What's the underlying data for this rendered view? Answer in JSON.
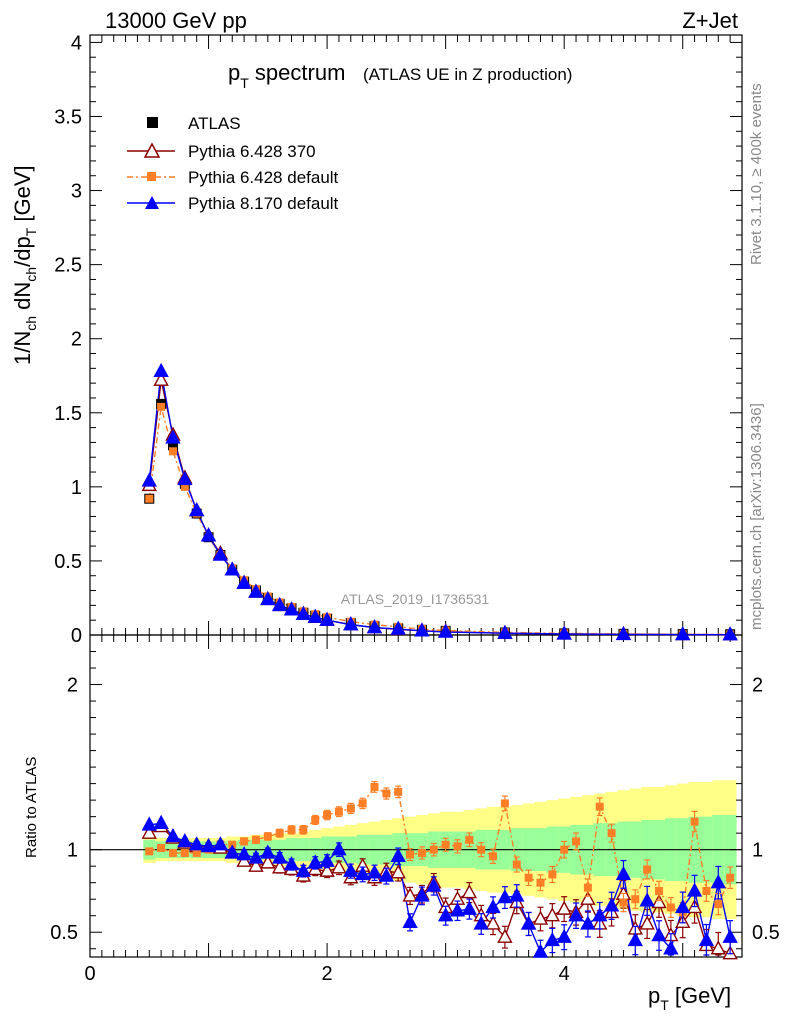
{
  "header": {
    "energy_label": "13000 GeV pp",
    "process_label": "Z+Jet"
  },
  "title": {
    "main": "p",
    "main_sub": "T",
    "main_rest": " spectrum",
    "note": "(ATLAS UE in Z production)"
  },
  "ylabel_top": "1/N_ch dN_ch/dp_T [GeV]",
  "ylabel_bottom": "Ratio to ATLAS",
  "xlabel": "p_T [GeV]",
  "analysis_id": "ATLAS_2019_I1736531",
  "side_text_top": "Rivet 3.1.10, ≥ 400k events",
  "side_text_bottom": "mcplots.cern.ch [arXiv:1306.3436]",
  "legend": {
    "atlas": "ATLAS",
    "p6_370": "Pythia 6.428 370",
    "p6_def": "Pythia 6.428 default",
    "p8_def": "Pythia 8.170 default"
  },
  "colors": {
    "atlas": "#000000",
    "p6_370": "#8b0000",
    "p6_def": "#ff7f27",
    "p8_def": "#0000ff",
    "band_inner": "#99ff99",
    "band_outer": "#ffff88"
  },
  "chart_data": [
    {
      "type": "line",
      "title": "p_T spectrum (ATLAS UE in Z production)",
      "xlabel": "p_T [GeV]",
      "ylabel": "1/N_ch dN_ch/dp_T [GeV]",
      "xlim": [
        0,
        5.5
      ],
      "ylim": [
        0,
        4.05
      ],
      "xticks": [
        "0",
        "2",
        "4"
      ],
      "yticks": [
        "0",
        "0.5",
        "1",
        "1.5",
        "2",
        "2.5",
        "3",
        "3.5",
        "4"
      ],
      "x": [
        0.5,
        0.6,
        0.7,
        0.8,
        0.9,
        1.0,
        1.1,
        1.2,
        1.3,
        1.4,
        1.5,
        1.6,
        1.7,
        1.8,
        1.9,
        2.0,
        2.2,
        2.4,
        2.6,
        2.8,
        3.0,
        3.5,
        4.0,
        4.5,
        5.0,
        5.4
      ],
      "series": [
        {
          "name": "ATLAS",
          "values": [
            0.92,
            1.56,
            1.28,
            1.02,
            0.82,
            0.66,
            0.54,
            0.44,
            0.36,
            0.3,
            0.25,
            0.21,
            0.18,
            0.15,
            0.13,
            0.11,
            0.08,
            0.06,
            0.045,
            0.035,
            0.028,
            0.017,
            0.011,
            0.008,
            0.006,
            0.005
          ]
        },
        {
          "name": "Pythia 6.428 370",
          "values": [
            1.01,
            1.72,
            1.35,
            1.06,
            0.84,
            0.67,
            0.55,
            0.44,
            0.35,
            0.29,
            0.24,
            0.2,
            0.17,
            0.14,
            0.12,
            0.1,
            0.07,
            0.05,
            0.038,
            0.028,
            0.022,
            0.012,
            0.007,
            0.005,
            0.003,
            0.002
          ]
        },
        {
          "name": "Pythia 6.428 default",
          "values": [
            0.92,
            1.54,
            1.24,
            1.0,
            0.82,
            0.66,
            0.54,
            0.45,
            0.37,
            0.31,
            0.26,
            0.22,
            0.19,
            0.16,
            0.14,
            0.12,
            0.09,
            0.07,
            0.055,
            0.04,
            0.03,
            0.018,
            0.011,
            0.008,
            0.005,
            0.004
          ]
        },
        {
          "name": "Pythia 8.170 default",
          "values": [
            1.04,
            1.78,
            1.33,
            1.05,
            0.84,
            0.67,
            0.54,
            0.44,
            0.35,
            0.29,
            0.24,
            0.2,
            0.17,
            0.14,
            0.12,
            0.1,
            0.07,
            0.05,
            0.04,
            0.028,
            0.02,
            0.012,
            0.007,
            0.004,
            0.003,
            0.002
          ]
        }
      ]
    },
    {
      "type": "line",
      "title": "Ratio to ATLAS",
      "xlabel": "p_T [GeV]",
      "ylabel": "Ratio to ATLAS",
      "xlim": [
        0,
        5.5
      ],
      "ylim": [
        0.35,
        2.3
      ],
      "yticks": [
        "0.5",
        "1",
        "2"
      ],
      "x": [
        0.5,
        0.6,
        0.7,
        0.8,
        0.9,
        1.0,
        1.1,
        1.2,
        1.3,
        1.4,
        1.5,
        1.6,
        1.7,
        1.8,
        1.9,
        2.0,
        2.1,
        2.2,
        2.3,
        2.4,
        2.5,
        2.6,
        2.7,
        2.8,
        2.9,
        3.0,
        3.1,
        3.2,
        3.3,
        3.4,
        3.5,
        3.6,
        3.7,
        3.8,
        3.9,
        4.0,
        4.1,
        4.2,
        4.3,
        4.4,
        4.5,
        4.6,
        4.7,
        4.8,
        4.9,
        5.0,
        5.1,
        5.2,
        5.3,
        5.4
      ],
      "band_inner": [
        0.06,
        0.05,
        0.05,
        0.05,
        0.05,
        0.05,
        0.05,
        0.05,
        0.06,
        0.06,
        0.06,
        0.06,
        0.07,
        0.07,
        0.07,
        0.08,
        0.08,
        0.08,
        0.09,
        0.09,
        0.09,
        0.1,
        0.1,
        0.1,
        0.11,
        0.11,
        0.11,
        0.11,
        0.12,
        0.12,
        0.12,
        0.13,
        0.13,
        0.13,
        0.14,
        0.14,
        0.15,
        0.15,
        0.16,
        0.16,
        0.17,
        0.17,
        0.18,
        0.18,
        0.19,
        0.19,
        0.2,
        0.2,
        0.21,
        0.21
      ],
      "band_outer": [
        0.08,
        0.07,
        0.07,
        0.07,
        0.07,
        0.07,
        0.07,
        0.08,
        0.08,
        0.09,
        0.09,
        0.1,
        0.1,
        0.11,
        0.12,
        0.13,
        0.14,
        0.15,
        0.16,
        0.17,
        0.18,
        0.19,
        0.2,
        0.21,
        0.22,
        0.23,
        0.23,
        0.24,
        0.25,
        0.26,
        0.26,
        0.27,
        0.28,
        0.29,
        0.3,
        0.31,
        0.32,
        0.33,
        0.34,
        0.35,
        0.36,
        0.37,
        0.38,
        0.38,
        0.39,
        0.4,
        0.41,
        0.41,
        0.42,
        0.42
      ],
      "series": [
        {
          "name": "Pythia 6.428 370",
          "values": [
            1.1,
            1.14,
            1.07,
            1.04,
            1.02,
            1.02,
            1.01,
            0.98,
            0.93,
            0.9,
            0.92,
            0.89,
            0.88,
            0.84,
            0.88,
            0.87,
            0.89,
            0.83,
            0.9,
            0.83,
            0.87,
            0.86,
            0.72,
            0.73,
            0.8,
            0.65,
            0.7,
            0.74,
            0.6,
            0.55,
            0.47,
            0.68,
            0.55,
            0.58,
            0.6,
            0.64,
            0.62,
            0.7,
            0.55,
            0.62,
            0.73,
            0.52,
            0.55,
            0.68,
            0.48,
            0.56,
            0.65,
            0.42,
            0.4,
            0.37
          ]
        },
        {
          "name": "Pythia 6.428 default",
          "values": [
            0.99,
            1.01,
            0.98,
            0.98,
            0.98,
            1.0,
            1.03,
            1.03,
            1.05,
            1.06,
            1.08,
            1.1,
            1.12,
            1.12,
            1.18,
            1.21,
            1.23,
            1.25,
            1.28,
            1.38,
            1.34,
            1.35,
            0.97,
            0.98,
            1.0,
            1.03,
            1.02,
            1.06,
            1.0,
            0.96,
            1.28,
            0.91,
            0.83,
            0.8,
            0.85,
            1.0,
            1.05,
            0.77,
            1.26,
            1.1,
            0.68,
            0.7,
            0.88,
            0.75,
            0.65,
            0.62,
            1.17,
            0.75,
            0.67,
            0.83
          ]
        },
        {
          "name": "Pythia 8.170 default",
          "values": [
            1.15,
            1.16,
            1.08,
            1.05,
            1.03,
            1.02,
            1.03,
            0.98,
            0.97,
            0.95,
            0.98,
            0.95,
            0.91,
            0.87,
            0.92,
            0.93,
            1.0,
            0.87,
            0.85,
            0.86,
            0.84,
            0.96,
            0.56,
            0.72,
            0.78,
            0.6,
            0.63,
            0.64,
            0.55,
            0.65,
            0.71,
            0.72,
            0.55,
            0.38,
            0.45,
            0.47,
            0.6,
            0.55,
            0.6,
            0.66,
            0.85,
            0.45,
            0.69,
            0.48,
            0.4,
            0.65,
            0.75,
            0.45,
            0.8,
            0.47
          ]
        }
      ]
    }
  ]
}
